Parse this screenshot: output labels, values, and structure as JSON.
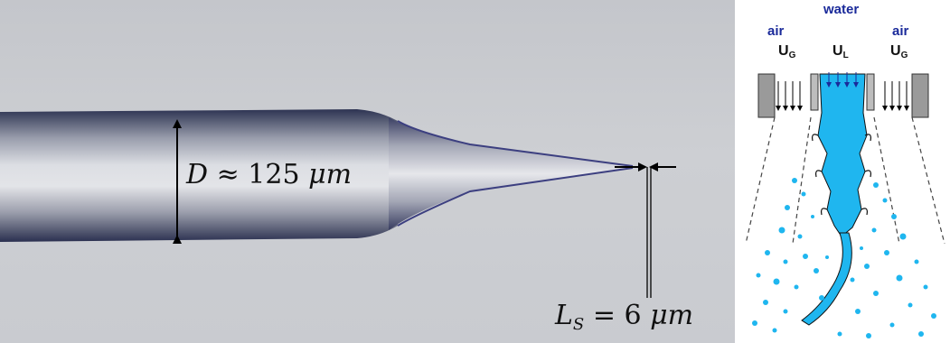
{
  "left_panel": {
    "diameter_label": {
      "symbol": "D",
      "relation": "≈",
      "value": "125",
      "unit": "μm"
    },
    "length_label": {
      "symbol": "L",
      "subscript": "S",
      "relation": "=",
      "value": "6",
      "unit": "μm"
    }
  },
  "right_panel": {
    "water_label": "water",
    "air_left_label": "air",
    "air_right_label": "air",
    "gas_velocity_left": {
      "main": "U",
      "sub": "G"
    },
    "liquid_velocity": {
      "main": "U",
      "sub": "L"
    },
    "gas_velocity_right": {
      "main": "U",
      "sub": "G"
    }
  },
  "colors": {
    "liquid": "#1fb6ef",
    "fiber_edge": "#2a2f5a",
    "nozzle_gray": "#9a9a9a",
    "label_blue": "#1a2a9a"
  }
}
